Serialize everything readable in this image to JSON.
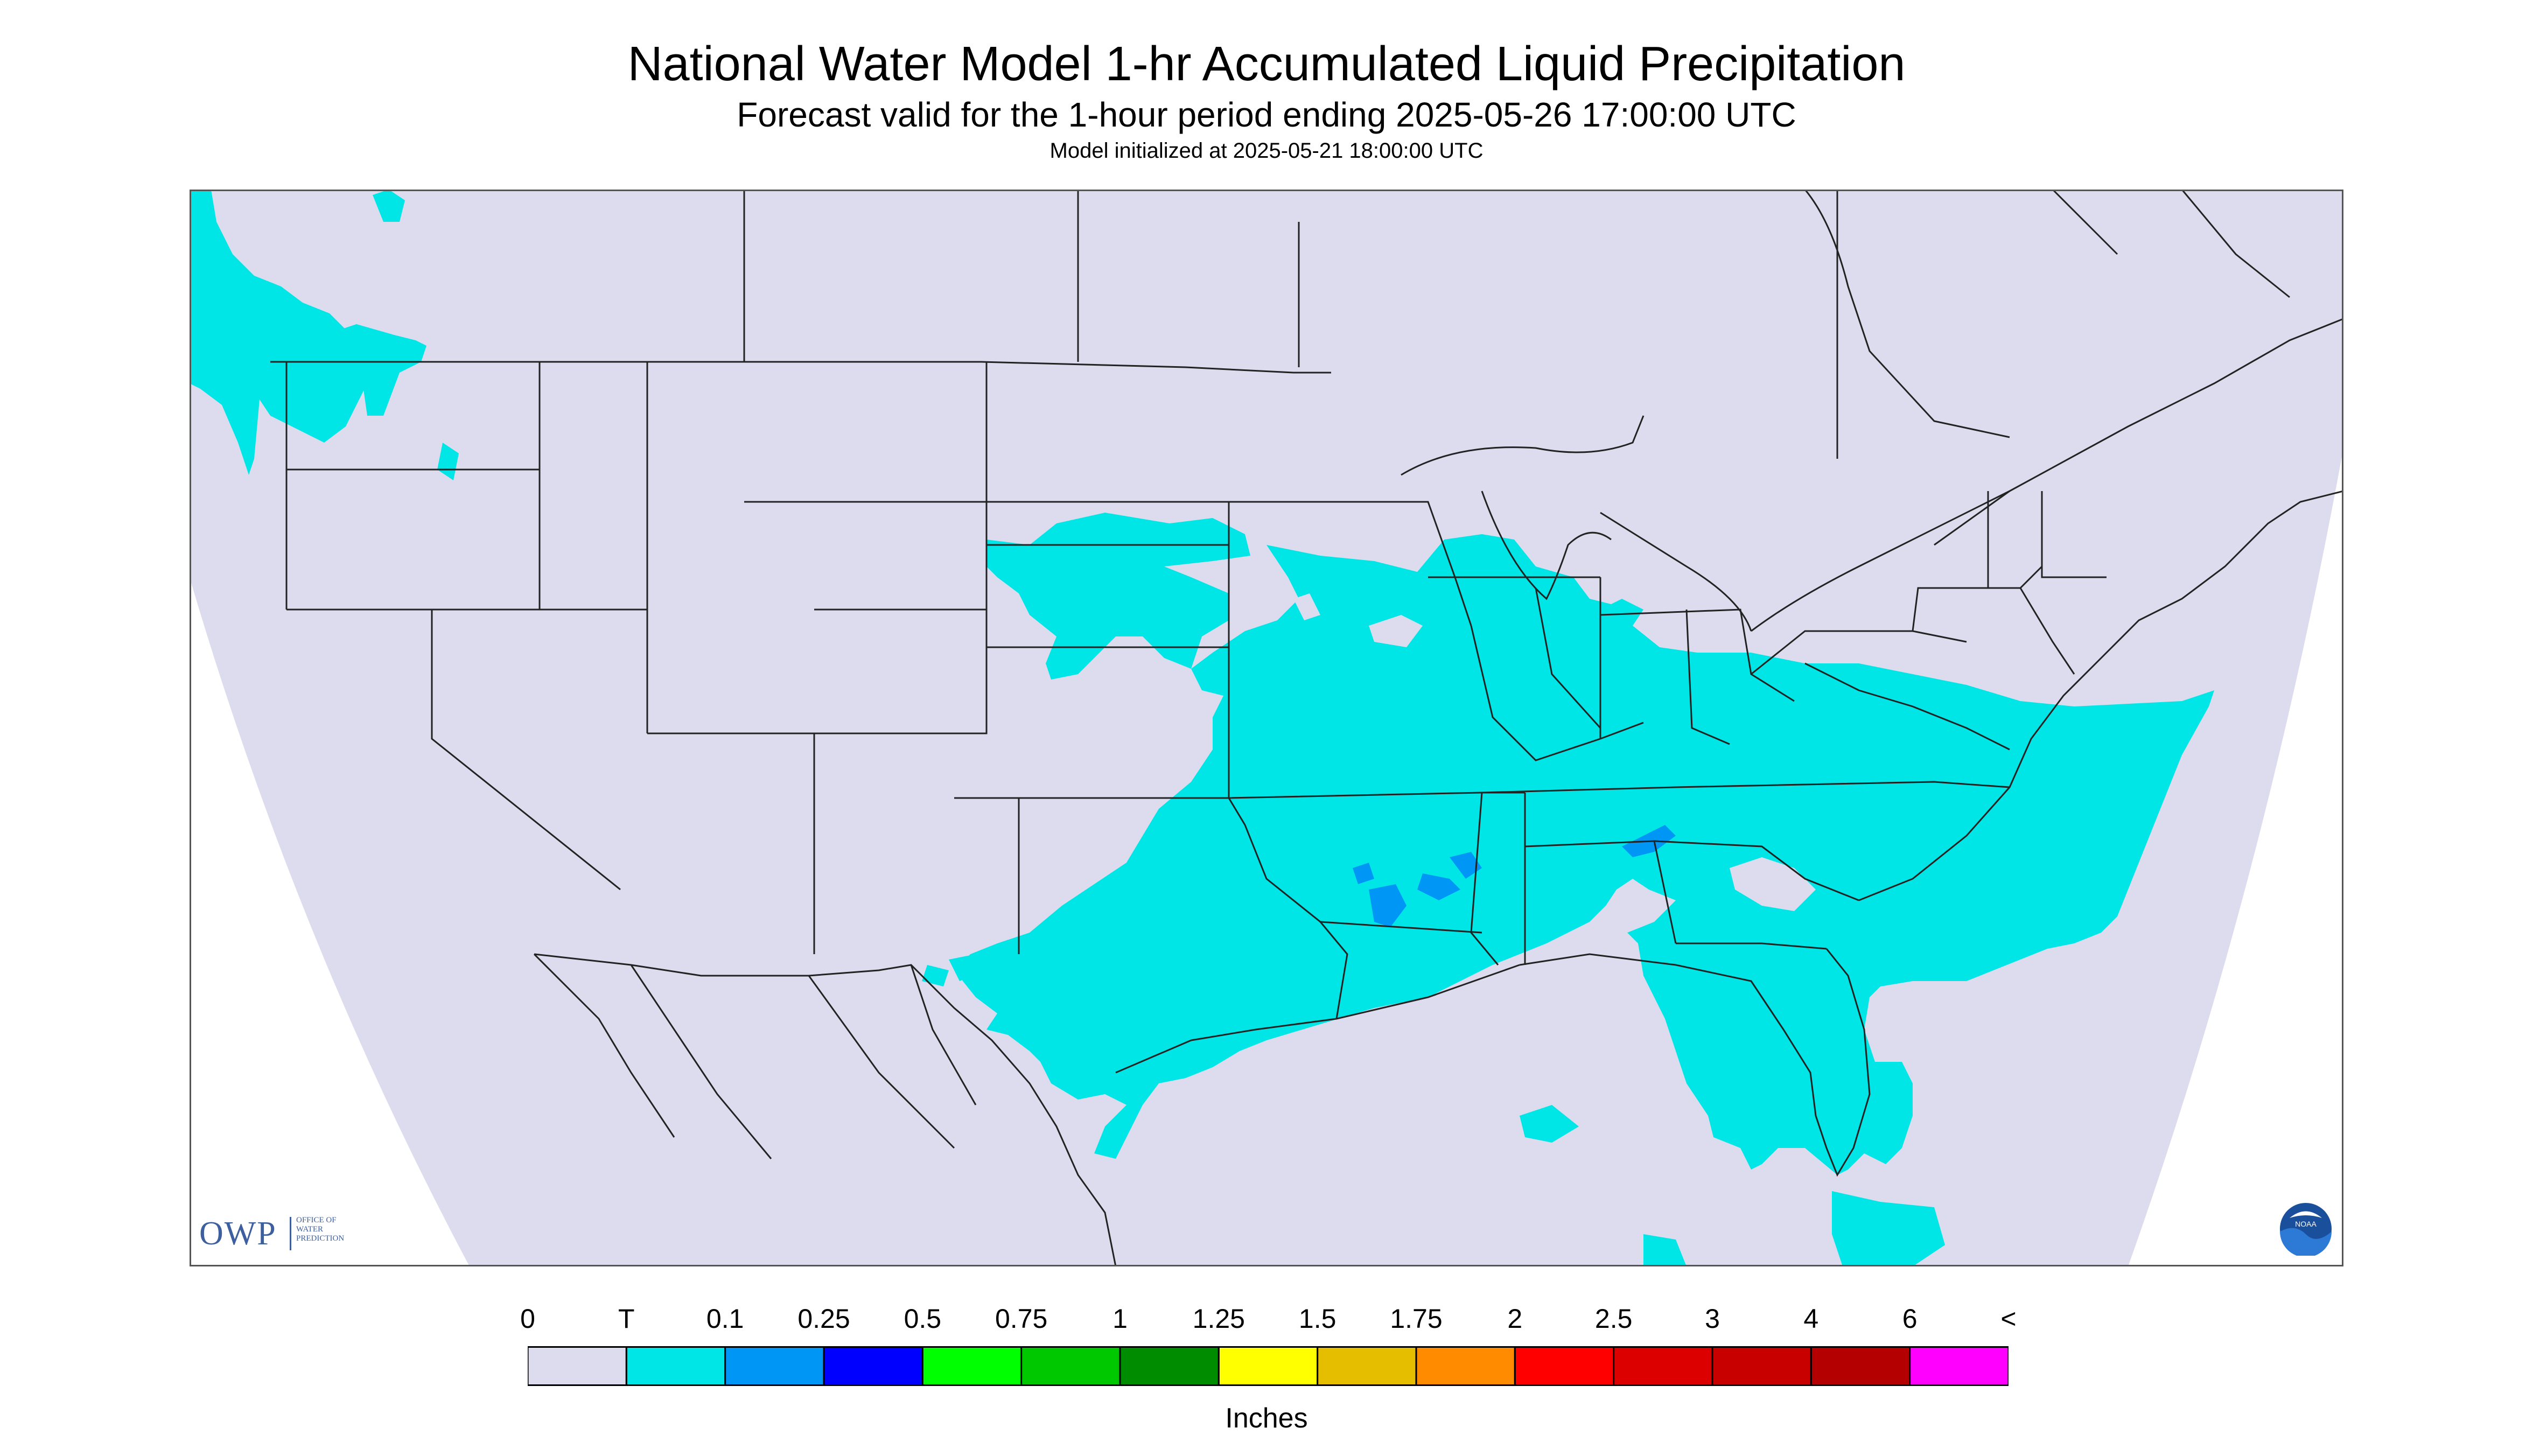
{
  "title": "National Water Model 1-hr Accumulated Liquid Precipitation",
  "subtitle": "Forecast valid for the 1-hour period ending 2025-05-26 17:00:00 UTC",
  "init_line": "Model initialized at 2025-05-21 18:00:00 UTC",
  "logo": {
    "owp_text": "OWP",
    "owp_small": [
      "OFFICE OF",
      "WATER",
      "PREDICTION"
    ],
    "noaa_text": "NOAA"
  },
  "colors": {
    "no_precip": "#dcdcee",
    "trace": "#00e6e6",
    "light_blue": "#0096f5",
    "background": "#ffffff",
    "border": "#000000"
  },
  "legend": {
    "labels": [
      "0",
      "T",
      "0.1",
      "0.25",
      "0.5",
      "0.75",
      "1",
      "1.25",
      "1.5",
      "1.75",
      "2",
      "2.5",
      "3",
      "4",
      "6",
      "<"
    ],
    "colors": [
      "#dcdcee",
      "#00e6e6",
      "#0096f5",
      "#0000ff",
      "#00ff00",
      "#00c800",
      "#008c00",
      "#ffff00",
      "#e6be00",
      "#ff8c00",
      "#ff0000",
      "#dc0000",
      "#c80000",
      "#b40000",
      "#ff00ff",
      "#9650c8"
    ],
    "units": "Inches"
  }
}
